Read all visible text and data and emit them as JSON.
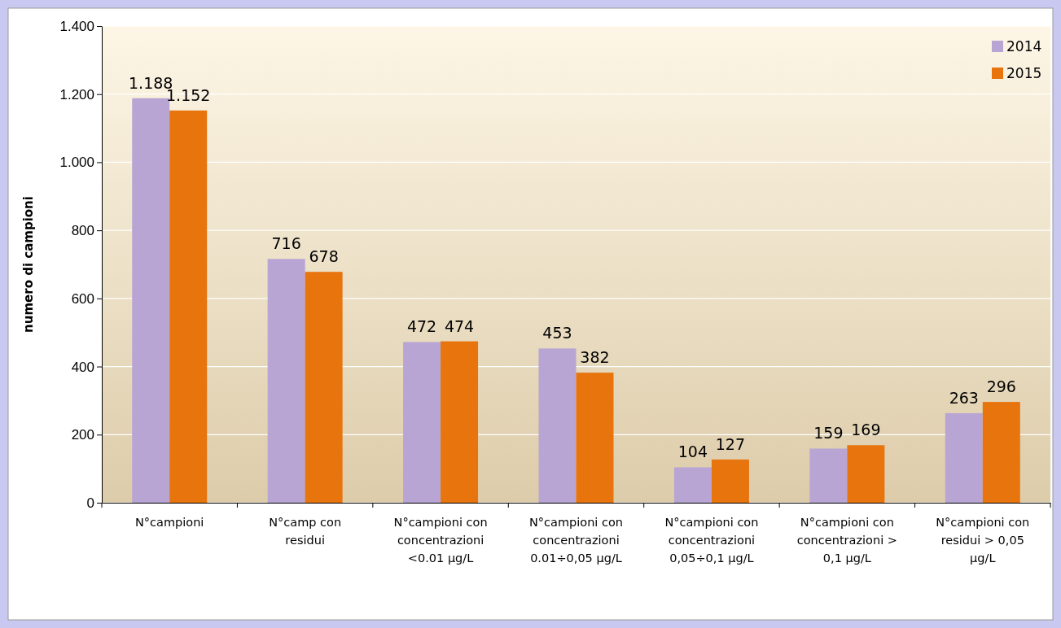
{
  "chart_data": {
    "type": "bar",
    "ylabel": "numero di campioni",
    "categories": [
      "N°campioni",
      "N°camp con residui",
      "N°campioni con concentrazioni <0.01 µg/L",
      "N°campioni con concentrazioni 0.01÷0,05 µg/L",
      "N°campioni con concentrazioni 0,05÷0,1 µg/L",
      "N°campioni con concentrazioni > 0,1 µg/L",
      "N°campioni con residui > 0,05 µg/L"
    ],
    "series": [
      {
        "name": "2014",
        "color": "#b8a5d4",
        "values": [
          1188,
          716,
          472,
          453,
          104,
          159,
          263
        ],
        "value_labels": [
          "1.188",
          "716",
          "472",
          "453",
          "104",
          "159",
          "263"
        ]
      },
      {
        "name": "2015",
        "color": "#e8740e",
        "values": [
          1152,
          678,
          474,
          382,
          127,
          169,
          296
        ],
        "value_labels": [
          "1.152",
          "678",
          "474",
          "382",
          "127",
          "169",
          "296"
        ]
      }
    ],
    "ylim": [
      0,
      1400
    ],
    "yticks": [
      0,
      200,
      400,
      600,
      800,
      {
        "value": 1000,
        "label": "1.000"
      },
      {
        "value": 1200,
        "label": "1.200"
      },
      {
        "value": 1400,
        "label": "1.400"
      }
    ],
    "grid": "y",
    "legend": "top right"
  }
}
